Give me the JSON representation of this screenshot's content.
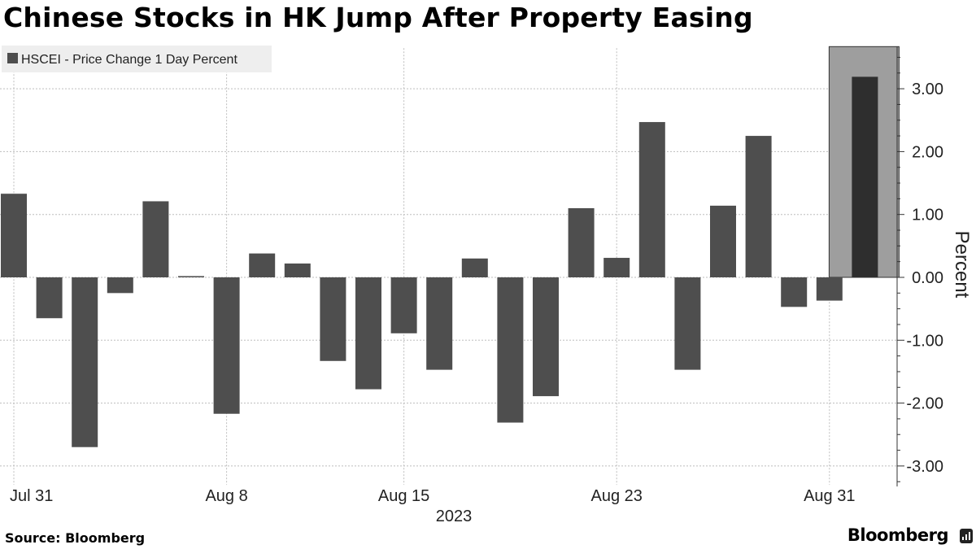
{
  "title": "Chinese Stocks in HK Jump After Property Easing",
  "source": "Source: Bloomberg",
  "brand": "Bloomberg",
  "colors": {
    "bar": "#4e4e4e",
    "highlight_bar": "#2e2e2e",
    "highlight_band": "#9e9e9e",
    "grid": "#bdbdbd",
    "legend_bg": "#eeeeee"
  },
  "chart_data": {
    "type": "bar",
    "title": "Chinese Stocks in HK Jump After Property Easing",
    "series": [
      {
        "name": "HSCEI - Price Change 1 Day Percent",
        "values": [
          1.33,
          -0.65,
          -2.7,
          -0.25,
          1.21,
          0.02,
          -2.17,
          0.38,
          0.22,
          -1.33,
          -1.78,
          -0.89,
          -1.47,
          0.3,
          -2.31,
          -1.89,
          1.1,
          0.31,
          2.47,
          -1.47,
          1.14,
          2.25,
          -0.47,
          -0.37,
          3.19
        ]
      }
    ],
    "x": [
      "2023-07-31",
      "2023-08-01",
      "2023-08-02",
      "2023-08-03",
      "2023-08-04",
      "2023-08-07",
      "2023-08-08",
      "2023-08-09",
      "2023-08-10",
      "2023-08-11",
      "2023-08-14",
      "2023-08-15",
      "2023-08-16",
      "2023-08-17",
      "2023-08-18",
      "2023-08-21",
      "2023-08-22",
      "2023-08-23",
      "2023-08-24",
      "2023-08-25",
      "2023-08-28",
      "2023-08-29",
      "2023-08-30",
      "2023-08-31",
      "2023-09-01"
    ],
    "highlight_index": 24,
    "x_tick_labels": [
      "Jul 31",
      "Aug 8",
      "Aug 15",
      "Aug 23",
      "Aug 31"
    ],
    "x_tick_dates": [
      "2023-07-31",
      "2023-08-08",
      "2023-08-15",
      "2023-08-23",
      "2023-08-31"
    ],
    "xlabel": "2023",
    "ylabel": "Percent",
    "yticks": [
      3,
      2,
      1,
      0,
      -1,
      -2,
      -3
    ],
    "ytick_labels": [
      "3.00",
      "2.00",
      "1.00",
      "0.00",
      "-1.00",
      "-2.00",
      "-3.00"
    ],
    "ylim": [
      -3.3,
      3.67
    ],
    "grid": true,
    "legend_position": "top-left",
    "y_axis_side": "right"
  }
}
